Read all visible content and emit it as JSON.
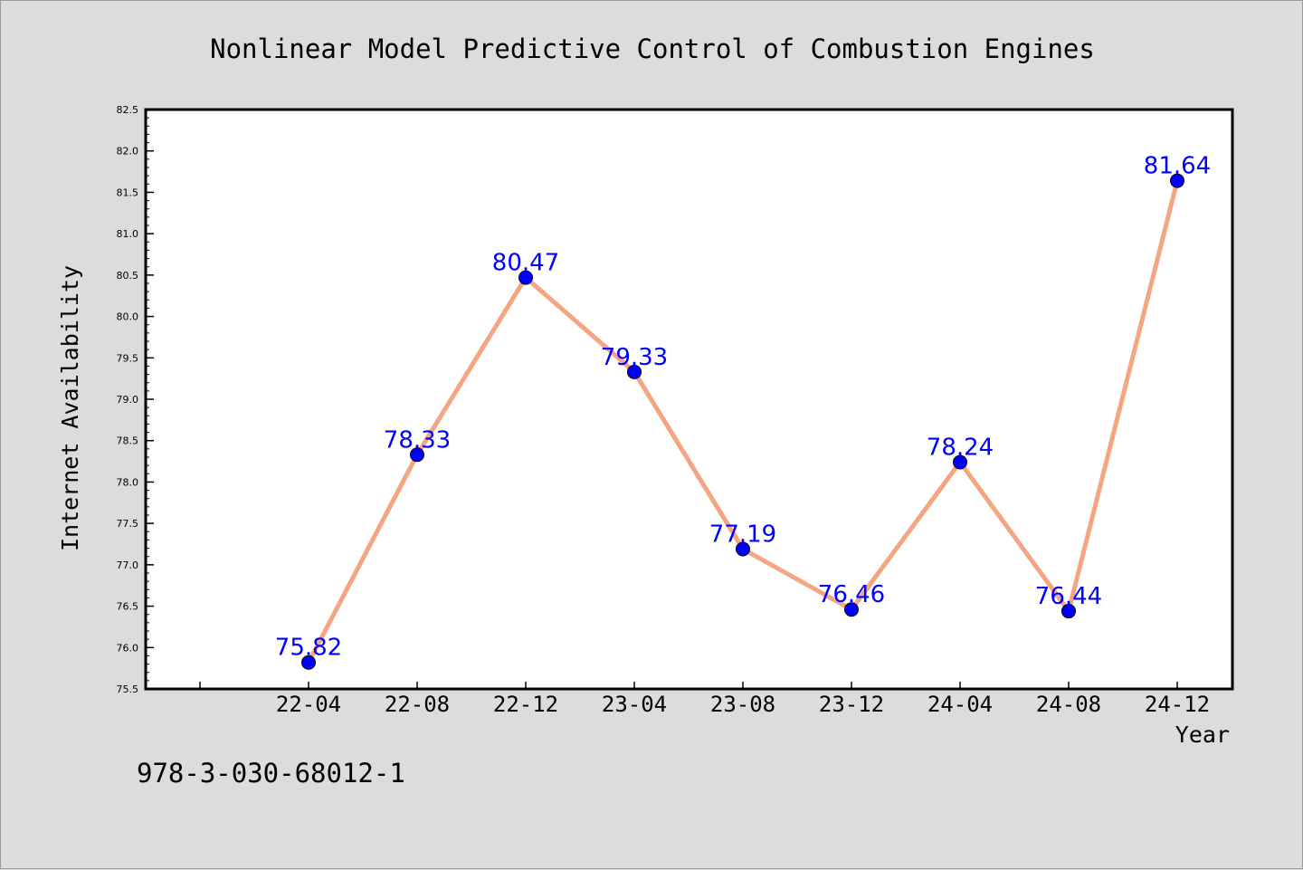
{
  "chart_data": {
    "type": "line",
    "title": "Nonlinear Model Predictive Control of Combustion Engines",
    "xlabel": "Year",
    "ylabel": "Internet Availability",
    "categories": [
      "22-04",
      "22-08",
      "22-12",
      "23-04",
      "23-08",
      "23-12",
      "24-04",
      "24-08",
      "24-12"
    ],
    "series": [
      {
        "values": [
          75.82,
          78.33,
          80.47,
          79.33,
          77.19,
          76.46,
          78.24,
          76.44,
          81.64
        ],
        "line_color": "#f4a582",
        "marker_color": "#0000ff"
      }
    ],
    "data_labels": [
      "75.82",
      "78.33",
      "80.47",
      "79.33",
      "77.19",
      "76.46",
      "78.24",
      "76.44",
      "81.64"
    ],
    "ylim": [
      75.5,
      82.5
    ],
    "yticks": [
      "75.5",
      "76.0",
      "76.5",
      "77.0",
      "77.5",
      "78.0",
      "78.5",
      "79.0",
      "79.5",
      "80.0",
      "80.5",
      "81.0",
      "81.5",
      "82.0",
      "82.5"
    ],
    "grid": false,
    "legend": "none"
  },
  "footer": {
    "isbn": "978-3-030-68012-1"
  },
  "colors": {
    "background": "#dcdcdc",
    "plot_background": "#ffffff",
    "line": "#f4a582",
    "marker": "#0000ff",
    "label": "#0000ff"
  }
}
